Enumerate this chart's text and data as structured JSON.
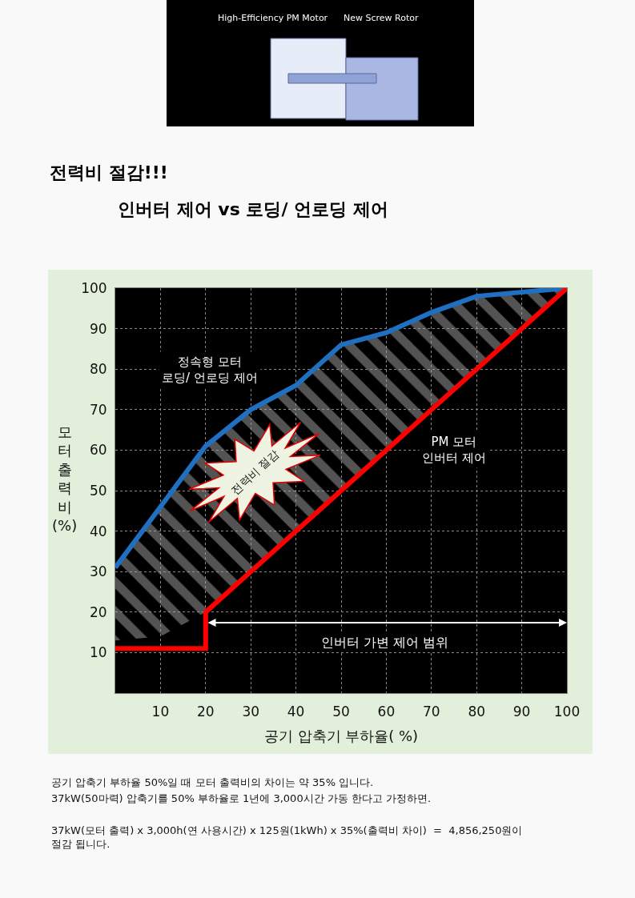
{
  "chart_data": {
    "type": "line",
    "title": "전력비 절감!!!",
    "subtitle": "인버터 제어 vs 로딩/ 언로딩 제어",
    "xlabel": "공기 압축기 부하율( %)",
    "ylabel": "모터 출력비 (%)",
    "xlim": [
      0,
      100
    ],
    "ylim": [
      0,
      100
    ],
    "xticks": [
      10,
      20,
      30,
      40,
      50,
      60,
      70,
      80,
      90,
      100
    ],
    "yticks": [
      10,
      20,
      30,
      40,
      50,
      60,
      70,
      80,
      90,
      100
    ],
    "grid": true,
    "legend": false,
    "series": [
      {
        "name": "정속형 모터\n로딩/ 언로딩 제어",
        "color": "#1f70c1",
        "x": [
          0,
          10,
          20,
          30,
          40,
          50,
          60,
          70,
          80,
          100
        ],
        "values": [
          31,
          46,
          61,
          70,
          76,
          86,
          89,
          94,
          98,
          100
        ],
        "lower": [
          13,
          14,
          20,
          30,
          40,
          50,
          60,
          70,
          80,
          100
        ],
        "upper": [
          31,
          46,
          61,
          70,
          76,
          86,
          89,
          94,
          98,
          100
        ]
      },
      {
        "name": "PM 모터\n인버터 제어",
        "color": "#ff0000",
        "x": [
          0,
          20,
          20,
          100
        ],
        "values": [
          11,
          11,
          20,
          100
        ]
      }
    ],
    "annotations": [
      "High-Efficiency PM Motor",
      "New Screw Rotor",
      "전력비 절감",
      "인버터 가변 제어 범위",
      "공기 압축기 부하율 50%일 때 모터 출력비의 차이는 약 35% 입니다.",
      "37kW(50마력) 압축기를 50% 부하율로 1년에 3,000시간 가동 한다고 가정하면.",
      "37kW(모터 출력) x 3,000h(연 사용시간) x 125원(1kWh) x 35%(출력비 차이)  =  4,856,250원이\n절감 됩니다."
    ]
  }
}
